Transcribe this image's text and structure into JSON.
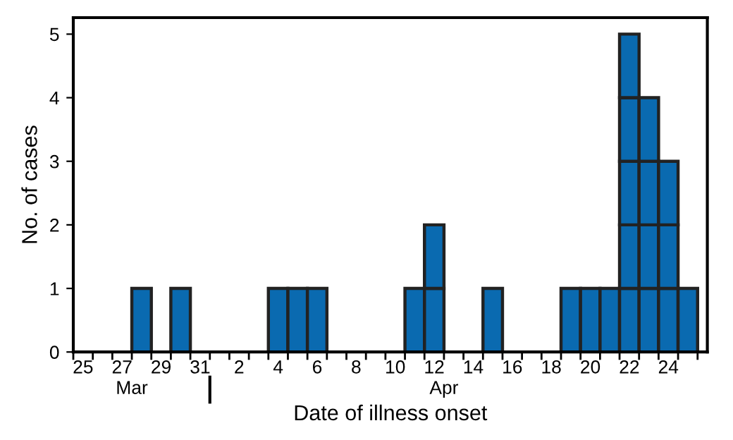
{
  "chart_data": {
    "type": "bar",
    "stacked": true,
    "xlabel": "Date of illness onset",
    "ylabel": "No. of cases",
    "categories": [
      "25",
      null,
      "27",
      null,
      "29",
      null,
      "31",
      null,
      "2",
      null,
      "4",
      null,
      "6",
      null,
      "8",
      null,
      "10",
      null,
      "12",
      null,
      "14",
      null,
      "16",
      null,
      "18",
      null,
      "20",
      null,
      "22",
      null,
      "24",
      null,
      null
    ],
    "series": [
      {
        "color": "#0a6ab0",
        "values": [
          null,
          null,
          null,
          1,
          null,
          1,
          null,
          null,
          null,
          null,
          1,
          1,
          1,
          null,
          null,
          null,
          null,
          1,
          1,
          null,
          null,
          1,
          null,
          null,
          null,
          1,
          1,
          1,
          1,
          1,
          1,
          1,
          null
        ]
      },
      {
        "color": "#0a6ab0",
        "values": [
          null,
          null,
          null,
          null,
          null,
          null,
          null,
          null,
          null,
          null,
          null,
          null,
          null,
          null,
          null,
          null,
          null,
          null,
          1,
          null,
          null,
          null,
          null,
          null,
          null,
          null,
          null,
          null,
          1,
          1,
          1,
          null,
          null
        ]
      },
      {
        "color": "#0a6ab0",
        "values": [
          null,
          null,
          null,
          null,
          null,
          null,
          null,
          null,
          null,
          null,
          null,
          null,
          null,
          null,
          null,
          null,
          null,
          null,
          null,
          null,
          null,
          null,
          null,
          null,
          null,
          null,
          null,
          null,
          1,
          1,
          1,
          null,
          null
        ]
      },
      {
        "color": "#0a6ab0",
        "values": [
          null,
          null,
          null,
          null,
          null,
          null,
          null,
          null,
          null,
          null,
          null,
          null,
          null,
          null,
          null,
          null,
          null,
          null,
          null,
          null,
          null,
          null,
          null,
          null,
          null,
          null,
          null,
          null,
          1,
          1,
          null,
          null,
          null
        ]
      },
      {
        "color": "#0a6ab0",
        "values": [
          null,
          null,
          null,
          null,
          null,
          null,
          null,
          null,
          null,
          null,
          null,
          null,
          null,
          null,
          null,
          null,
          null,
          null,
          null,
          null,
          null,
          null,
          null,
          null,
          null,
          null,
          null,
          null,
          1,
          null,
          null,
          null,
          null
        ]
      }
    ],
    "ylim": [
      0,
      5.26
    ],
    "yticks": [
      0,
      1,
      2,
      3,
      4,
      5
    ],
    "grid": false,
    "legend": false,
    "annotations": [
      "Mar",
      "Apr"
    ]
  }
}
